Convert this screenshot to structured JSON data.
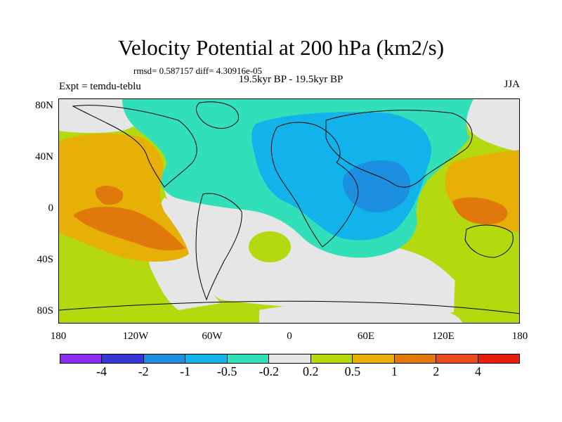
{
  "header": {
    "title": "Velocity Potential at 200 hPa (km2/s)",
    "stats": "rmsd= 0.587157 diff= 4.30916e-05",
    "period": "19.5kyr BP - 19.5kyr BP",
    "experiment": "Expt = temdu-teblu",
    "season": "JJA"
  },
  "map": {
    "lat_labels": [
      "80N",
      "40N",
      "0",
      "40S",
      "80S"
    ],
    "lon_labels": [
      "180",
      "120W",
      "60W",
      "0",
      "60E",
      "120E",
      "180"
    ],
    "colors": {
      "ocean_gray": "#e6e6e6",
      "light_teal": "#31e0b8",
      "light_blue": "#12b3ea",
      "mid_blue": "#1c8fe0",
      "yellow_green": "#b4d90e",
      "gold": "#e6b007",
      "orange": "#e0780b"
    }
  },
  "colorbar": {
    "colors": [
      "#8b2bf0",
      "#3636d8",
      "#1c8fe0",
      "#12b3ea",
      "#31e0b8",
      "#e6e6e6",
      "#b4d90e",
      "#e6b007",
      "#e0780b",
      "#e64a1c",
      "#e61e10"
    ],
    "labels": [
      "-4",
      "-2",
      "-1",
      "-0.5",
      "-0.2",
      "0.2",
      "0.5",
      "1",
      "2",
      "4"
    ]
  }
}
